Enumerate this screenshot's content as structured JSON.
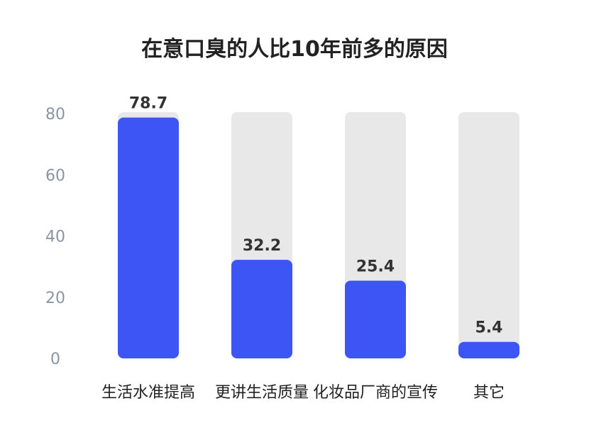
{
  "title": "在意口臭的人比10年前多的原因",
  "colors": {
    "bar": "#3d55f5",
    "track": "#e8e8e8"
  },
  "chart_data": {
    "type": "bar",
    "title": "在意口臭的人比10年前多的原因",
    "xlabel": "",
    "ylabel": "",
    "categories": [
      "生活水准提高",
      "更讲生活质量",
      "化妆品厂商的宣传",
      "其它"
    ],
    "values": [
      78.7,
      32.2,
      25.4,
      5.4
    ],
    "value_labels": [
      "78.7",
      "32.2",
      "25.4",
      "5.4"
    ],
    "ylim": [
      0,
      80
    ],
    "yticks": [
      0,
      20,
      40,
      60,
      80
    ],
    "ytick_labels": [
      "0",
      "20",
      "40",
      "60",
      "80"
    ],
    "grid": false,
    "legend": "none"
  }
}
